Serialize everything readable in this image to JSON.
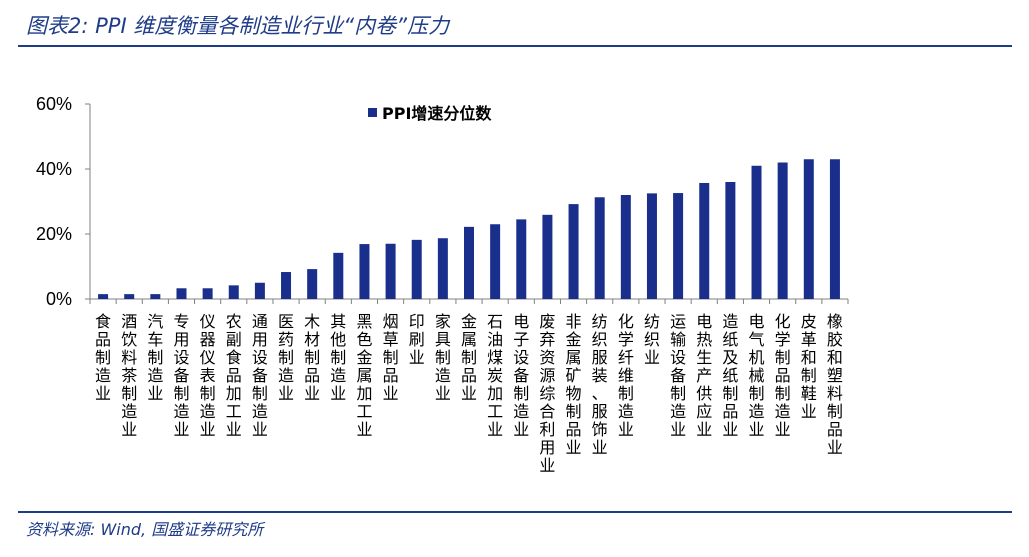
{
  "figure": {
    "title": "图表2: PPI 维度衡量各制造业行业“内卷”压力",
    "source": "资料来源: Wind, 国盛证券研究所"
  },
  "colors": {
    "bar": "#1a2f8c",
    "rule": "#1f3c88",
    "axis": "#808080"
  },
  "chart_data": {
    "type": "bar",
    "title": "",
    "xlabel": "",
    "ylabel": "",
    "ylim": [
      0,
      60
    ],
    "yticks": [
      "0%",
      "20%",
      "40%",
      "60%"
    ],
    "ytick_values": [
      0,
      20,
      40,
      60
    ],
    "legend": "top",
    "grid": false,
    "categories": [
      "食品制造业",
      "酒饮料茶制造业",
      "汽车制造业",
      "专用设备制造业",
      "仪器仪表制造业",
      "农副食品加工业",
      "通用设备制造业",
      "医药制造业",
      "木材制品业",
      "其他制造业",
      "黑色金属加工业",
      "烟草制品业",
      "印刷业",
      "家具制造业",
      "金属制品业",
      "石油煤炭加工业",
      "电子设备制造业",
      "废弃资源综合利用业",
      "非金属矿物制品业",
      "纺织服装、服饰业",
      "化学纤维制造业",
      "纺织业",
      "运输设备制造业",
      "电热生产供应业",
      "造纸及纸制品业",
      "电气机械制造业",
      "化学制品制造业",
      "皮革和制鞋业",
      "橡胶和塑料制品业"
    ],
    "series": [
      {
        "name": "PPI增速分位数",
        "values": [
          1.5,
          1.5,
          1.5,
          3.3,
          3.3,
          4.2,
          5.0,
          8.3,
          9.2,
          14.2,
          16.9,
          17.0,
          18.2,
          18.7,
          22.2,
          23.0,
          24.5,
          25.9,
          29.2,
          31.3,
          32.0,
          32.5,
          32.6,
          35.7,
          36.0,
          41.0,
          42.0,
          43.0,
          43.0
        ]
      }
    ]
  }
}
